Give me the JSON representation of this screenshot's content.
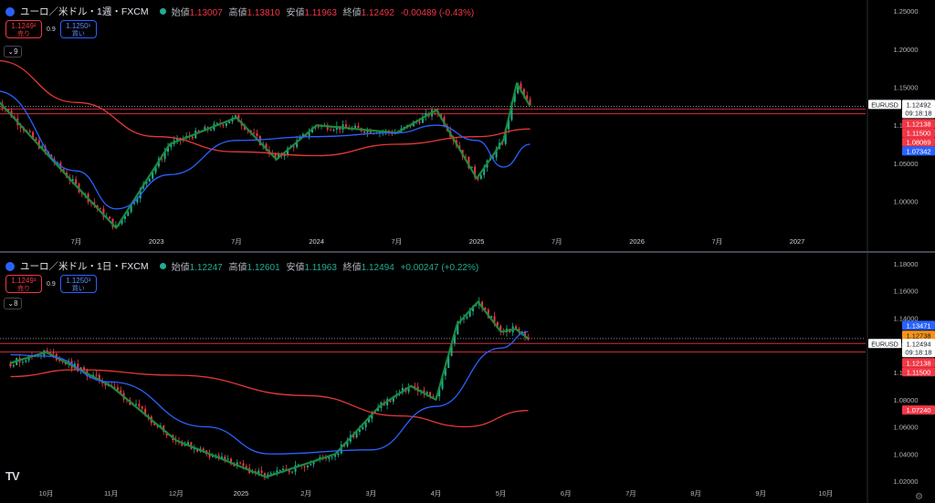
{
  "top": {
    "symbol": "ユーロ／米ドル・1週・FXCM",
    "ohlc": [
      {
        "k": "始値",
        "v": "1.13007"
      },
      {
        "k": "高値",
        "v": "1.13810"
      },
      {
        "k": "安値",
        "v": "1.11963"
      },
      {
        "k": "終値",
        "v": "1.12492"
      }
    ],
    "change": "-0.00489 (-0.43%)",
    "sell_price": "1.1249²",
    "sell_label": "売り",
    "spread": "0.9",
    "buy_price": "1.1250¹",
    "buy_label": "買い",
    "indicator_count": "9"
  },
  "bottom": {
    "symbol": "ユーロ／米ドル・1日・FXCM",
    "ohlc": [
      {
        "k": "始値",
        "v": "1.12247"
      },
      {
        "k": "高値",
        "v": "1.12601"
      },
      {
        "k": "安値",
        "v": "1.11963"
      },
      {
        "k": "終値",
        "v": "1.12494"
      }
    ],
    "change": "+0.00247 (+0.22%)",
    "sell_price": "1.1249³",
    "sell_label": "売り",
    "spread": "0.9",
    "buy_price": "1.1250³",
    "buy_label": "買い",
    "indicator_count": "8"
  },
  "chart_data": [
    {
      "type": "candlestick",
      "timeframe": "weekly",
      "symbol": "EURUSD",
      "y_ticks": [
        "1.25000",
        "1.20000",
        "1.15000",
        "1.10000",
        "1.05000",
        "1.00000"
      ],
      "ylim": [
        0.955,
        1.255
      ],
      "x_ticks": [
        "7月",
        "2023",
        "7月",
        "2024",
        "7月",
        "2025",
        "7月",
        "2026",
        "7月",
        "2027"
      ],
      "close_path_x": [
        "2022-01",
        "2022-07",
        "2022-10",
        "2023-02",
        "2023-07",
        "2023-10",
        "2024-01",
        "2024-07",
        "2024-10",
        "2025-01",
        "2025-03",
        "2025-04",
        "2025-05"
      ],
      "close_path_y": [
        1.135,
        1.02,
        0.965,
        1.075,
        1.11,
        1.055,
        1.1,
        1.09,
        1.12,
        1.03,
        1.08,
        1.155,
        1.125
      ],
      "ma_fast": {
        "x": [
          "2022-01",
          "2022-07",
          "2022-10",
          "2023-02",
          "2023-07",
          "2024-01",
          "2024-07",
          "2024-10",
          "2025-01",
          "2025-03",
          "2025-05"
        ],
        "y": [
          1.145,
          1.04,
          0.99,
          1.035,
          1.08,
          1.085,
          1.09,
          1.1,
          1.08,
          1.045,
          1.075
        ]
      },
      "ma_slow": {
        "x": [
          "2022-01",
          "2022-07",
          "2023-01",
          "2023-07",
          "2024-01",
          "2024-07",
          "2025-01",
          "2025-05"
        ],
        "y": [
          1.185,
          1.13,
          1.085,
          1.065,
          1.06,
          1.075,
          1.085,
          1.095
        ]
      },
      "horizontal_levels": [
        1.12138,
        1.115
      ],
      "labels": [
        {
          "text": "EURUSD",
          "value": "1.12492",
          "time": "09:18:18",
          "color": "#ffffff"
        },
        {
          "text": "",
          "value": "1.12138",
          "color": "#f23645"
        },
        {
          "text": "",
          "value": "1.11500",
          "color": "#f23645"
        },
        {
          "text": "",
          "value": "1.08069",
          "color": "#f23645"
        },
        {
          "text": "",
          "value": "1.07342",
          "color": "#2962ff"
        }
      ]
    },
    {
      "type": "candlestick",
      "timeframe": "daily",
      "symbol": "EURUSD",
      "y_ticks": [
        "1.18000",
        "1.16000",
        "1.14000",
        "1.12000",
        "1.10000",
        "1.08000",
        "1.06000",
        "1.04000",
        "1.02000"
      ],
      "ylim": [
        1.016,
        1.184
      ],
      "x_ticks": [
        "10月",
        "11月",
        "12月",
        "2025",
        "2月",
        "3月",
        "4月",
        "5月",
        "6月",
        "7月",
        "8月",
        "9月",
        "10月"
      ],
      "close_path_x": [
        "2024-09-15",
        "2024-10-01",
        "2024-11-01",
        "2024-12-01",
        "2025-01-13",
        "2025-02-15",
        "2025-03-05",
        "2025-03-20",
        "2025-04-01",
        "2025-04-11",
        "2025-04-21",
        "2025-05-01",
        "2025-05-08",
        "2025-05-14"
      ],
      "close_path_y": [
        1.107,
        1.115,
        1.09,
        1.05,
        1.023,
        1.04,
        1.075,
        1.09,
        1.08,
        1.135,
        1.152,
        1.13,
        1.132,
        1.125
      ],
      "ma_fast": {
        "x": [
          "2024-09-15",
          "2024-10-01",
          "2024-11-01",
          "2024-12-15",
          "2025-01-15",
          "2025-03-01",
          "2025-04-01",
          "2025-05-01",
          "2025-05-14"
        ],
        "y": [
          1.113,
          1.112,
          1.093,
          1.06,
          1.04,
          1.043,
          1.075,
          1.118,
          1.13
        ]
      },
      "ma_slow": {
        "x": [
          "2024-09-15",
          "2024-10-15",
          "2024-12-01",
          "2025-02-01",
          "2025-03-15",
          "2025-04-15",
          "2025-05-14"
        ],
        "y": [
          1.097,
          1.102,
          1.098,
          1.083,
          1.068,
          1.06,
          1.072
        ]
      },
      "horizontal_levels": [
        1.12138,
        1.115
      ],
      "labels": [
        {
          "text": "",
          "value": "1.13471",
          "color": "#2962ff"
        },
        {
          "text": "",
          "value": "1.12738",
          "color": "#f7931a"
        },
        {
          "text": "EURUSD",
          "value": "1.12494",
          "time": "09:18:18",
          "color": "#ffffff"
        },
        {
          "text": "",
          "value": "1.12138",
          "color": "#f23645"
        },
        {
          "text": "",
          "value": "1.11500",
          "color": "#f23645"
        },
        {
          "text": "",
          "value": "1.07240",
          "color": "#f23645"
        }
      ]
    }
  ]
}
